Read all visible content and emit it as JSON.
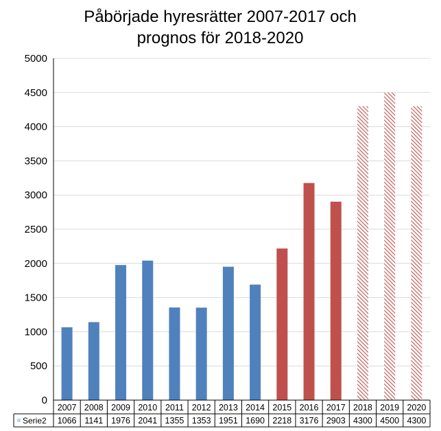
{
  "chart_data": {
    "type": "bar",
    "title_lines": [
      "Påbörjade hyresrätter 2007-2017 och",
      "prognos för 2018-2020"
    ],
    "categories": [
      "2007",
      "2008",
      "2009",
      "2010",
      "2011",
      "2012",
      "2013",
      "2014",
      "2015",
      "2016",
      "2017",
      "2018",
      "2019",
      "2020"
    ],
    "series": [
      {
        "name": "Serie2",
        "values": [
          1066,
          1141,
          1976,
          2041,
          1355,
          1353,
          1951,
          1690,
          2218,
          3176,
          2903,
          4300,
          4500,
          4300
        ]
      }
    ],
    "bar_styles": [
      "blue",
      "blue",
      "blue",
      "blue",
      "blue",
      "blue",
      "blue",
      "blue",
      "red",
      "red",
      "red",
      "hatched-red",
      "hatched-red",
      "hatched-red"
    ],
    "colors": {
      "blue": "#4F81BD",
      "red": "#C0504D",
      "grid": "#D9D9D9",
      "axis": "#000000"
    },
    "y_ticks": [
      "0",
      "500",
      "1000",
      "1500",
      "2000",
      "2500",
      "3000",
      "3500",
      "4000",
      "4500",
      "5000"
    ],
    "ylim": [
      0,
      5000
    ],
    "grid": true,
    "data_table": true,
    "legend_position": "data-table-left"
  }
}
